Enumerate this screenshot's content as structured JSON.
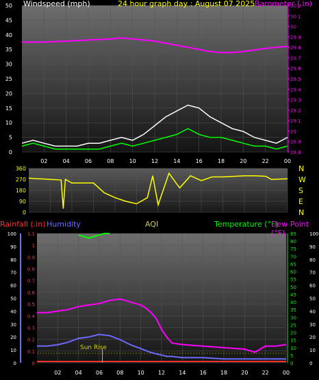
{
  "colors": {
    "background": "#000000",
    "wind_axis": "#ffffff",
    "title": "#ffff00",
    "barometer": "#ff00ff",
    "wind_speed": "#ffffff",
    "wind_gust": "#00ff00",
    "direction": "#ffff00",
    "rain": "#ff3030",
    "humidity": "#6b6bff",
    "aqi": "#cccc66",
    "temperature": "#00ff00",
    "dew_point": "#ff00ff",
    "sun_rise": "#d4d400"
  },
  "header": {
    "windspeed_label": "Windspeed (mph)",
    "title": "24 hour graph day : August 07 2025",
    "barometer_label": "Barometer (.in)"
  },
  "compass": [
    "N",
    "W",
    "S",
    "E",
    "N"
  ],
  "lower_header": {
    "rainfall_label": "Rainfall (.in)",
    "humidity_label": "Humidity",
    "aqi_label": "AQI",
    "temperature_label": "Temperature (°F)",
    "dewpoint_label": "Dew Point (°F)"
  },
  "sun_rise_label": "Sun Rise",
  "chart_data": [
    {
      "type": "line",
      "name": "wind-barometer",
      "x_ticks": [
        "02",
        "04",
        "06",
        "08",
        "10",
        "12",
        "14",
        "16",
        "18",
        "20",
        "22",
        "00"
      ],
      "y_left_ticks": [
        "0",
        "5",
        "10",
        "15",
        "20",
        "25",
        "30",
        "35",
        "40",
        "45",
        "50"
      ],
      "y_left_range": [
        0,
        50
      ],
      "y_right_ticks": [
        "28.8",
        "28.9",
        "29",
        "29.1",
        "29.2",
        "29.3",
        "29.4",
        "29.5",
        "29.6",
        "29.7",
        "29.8",
        "29.9",
        "30",
        "30.1",
        "30.2"
      ],
      "y_right_range": [
        28.8,
        30.2
      ],
      "series": [
        {
          "key": "barometer",
          "x": [
            0,
            2,
            4,
            6,
            8,
            9,
            10,
            12,
            14,
            16,
            17,
            18,
            19,
            20,
            22,
            23,
            24
          ],
          "y": [
            29.85,
            29.85,
            29.86,
            29.87,
            29.88,
            29.89,
            29.88,
            29.86,
            29.82,
            29.78,
            29.76,
            29.75,
            29.75,
            29.76,
            29.79,
            29.8,
            29.81
          ]
        },
        {
          "key": "wind_speed",
          "x": [
            0,
            1,
            2,
            3,
            4,
            5,
            6,
            7,
            8,
            9,
            10,
            11,
            12,
            13,
            14,
            15,
            16,
            17,
            18,
            19,
            20,
            21,
            22,
            23,
            24
          ],
          "y": [
            3,
            4,
            3,
            2,
            2,
            2,
            3,
            3,
            4,
            5,
            4,
            6,
            9,
            12,
            14,
            16,
            15,
            12,
            10,
            8,
            7,
            5,
            4,
            3,
            5
          ]
        },
        {
          "key": "wind_gust",
          "x": [
            0,
            1,
            2,
            3,
            4,
            5,
            6,
            7,
            8,
            9,
            10,
            11,
            12,
            13,
            14,
            15,
            16,
            17,
            18,
            19,
            20,
            21,
            22,
            23,
            24
          ],
          "y": [
            2,
            3,
            2,
            1,
            1,
            1,
            1,
            1,
            2,
            3,
            2,
            3,
            4,
            5,
            6,
            8,
            6,
            5,
            5,
            4,
            3,
            2,
            2,
            1,
            2
          ]
        }
      ]
    },
    {
      "type": "line",
      "name": "wind-direction",
      "y_ticks": [
        "0",
        "90",
        "180",
        "270",
        "360"
      ],
      "y_range": [
        0,
        360
      ],
      "series": [
        {
          "key": "direction",
          "x": [
            0,
            2,
            3,
            3.2,
            3.4,
            4,
            6,
            7,
            8,
            9,
            10,
            11,
            11.5,
            12,
            13,
            14,
            15,
            16,
            17,
            18,
            19,
            20,
            21,
            22,
            22.5,
            24
          ],
          "y": [
            280,
            270,
            265,
            30,
            270,
            240,
            240,
            160,
            120,
            90,
            70,
            120,
            300,
            60,
            320,
            200,
            300,
            260,
            290,
            290,
            295,
            300,
            300,
            295,
            270,
            275
          ]
        }
      ]
    },
    {
      "type": "line",
      "name": "temp-humidity-rain",
      "y_left_ticks": [
        "0",
        "10",
        "20",
        "30",
        "40",
        "50",
        "60",
        "70",
        "80",
        "90",
        "100"
      ],
      "y_rain_ticks": [
        "0",
        "0.1",
        "0.2",
        "0.3",
        "0.4",
        "0.5",
        "0.6",
        "0.7",
        "0.8",
        "0.9",
        "1",
        "1.1"
      ],
      "y_right_ticks": [
        "0",
        "5",
        "10",
        "15",
        "20",
        "25",
        "30",
        "35",
        "40",
        "45",
        "50",
        "55",
        "60",
        "65",
        "70",
        "75",
        "80",
        "85"
      ],
      "y_right_range": [
        0,
        85
      ],
      "y_far_right_ticks": [
        "0",
        "10",
        "20",
        "30",
        "40",
        "50",
        "60",
        "70",
        "80",
        "90",
        "100"
      ],
      "series": [
        {
          "key": "dew_point",
          "x": [
            0,
            1,
            2,
            3,
            4,
            5,
            6,
            7,
            8,
            9,
            10,
            10.5,
            11,
            11.5,
            12,
            12.5,
            13,
            14,
            16,
            18,
            20,
            21,
            22,
            23,
            24
          ],
          "y": [
            33,
            33,
            34,
            35,
            37,
            38,
            39,
            41,
            42,
            40,
            38,
            36,
            33,
            29,
            22,
            17,
            13,
            12,
            11,
            10,
            9,
            7,
            11,
            11,
            12
          ]
        },
        {
          "key": "humidity",
          "x": [
            0,
            1,
            2,
            3,
            4,
            5,
            6,
            7,
            8,
            9,
            10,
            11,
            12,
            12.5,
            13,
            14,
            16,
            18,
            20,
            22,
            24
          ],
          "y": [
            13,
            13,
            14,
            16,
            19,
            20,
            22,
            21,
            18,
            14,
            11,
            8,
            6,
            5,
            5,
            4,
            4,
            3,
            3,
            3,
            3
          ]
        },
        {
          "key": "temperature",
          "x": [
            4,
            4.5,
            5,
            5.5,
            6,
            6.5,
            7
          ],
          "y": [
            84,
            83,
            82,
            83,
            84,
            85,
            85
          ]
        }
      ]
    }
  ]
}
